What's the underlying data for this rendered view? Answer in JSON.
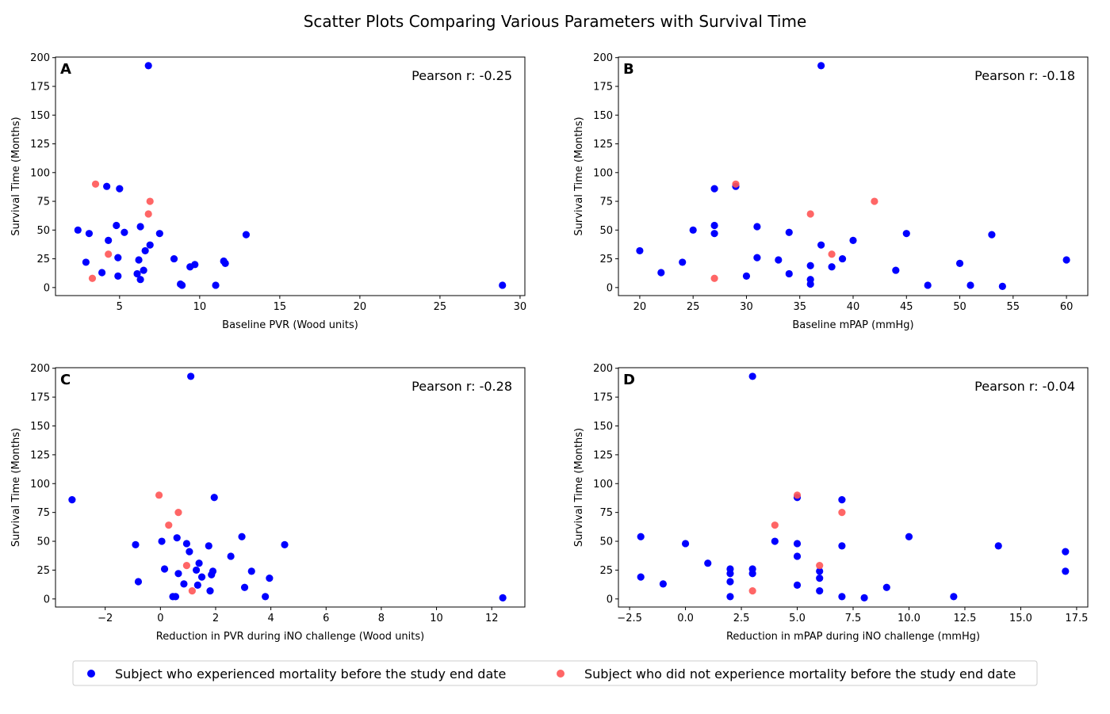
{
  "title": "Scatter Plots Comparing Various Parameters with Survival Time",
  "legend": {
    "placement": "bottom-center",
    "entries": [
      {
        "label": "Subject who experienced mortality before the study end date",
        "color": "#0000ff"
      },
      {
        "label": "Subject who did not experience mortality before the study end date",
        "color": "#ff5555"
      }
    ]
  },
  "chart_data": [
    {
      "type": "scatter",
      "panel": "A",
      "annotation": "Pearson r: -0.25",
      "xlabel": "Baseline PVR (Wood units)",
      "ylabel": "Survival Time (Months)",
      "xlim": [
        1,
        30.3
      ],
      "ylim": [
        -7,
        200.5
      ],
      "xticks": [
        5,
        10,
        15,
        20,
        25,
        30
      ],
      "yticks": [
        0,
        25,
        50,
        75,
        100,
        125,
        150,
        175,
        200
      ],
      "series": [
        {
          "name": "Subject who experienced mortality before the study end date",
          "color": "#0000ff",
          "points": [
            [
              6.8,
              193
            ],
            [
              4.2,
              88
            ],
            [
              5.0,
              86
            ],
            [
              4.8,
              54
            ],
            [
              6.3,
              53
            ],
            [
              2.4,
              50
            ],
            [
              5.3,
              48
            ],
            [
              3.1,
              47
            ],
            [
              7.5,
              47
            ],
            [
              12.9,
              46
            ],
            [
              4.3,
              41
            ],
            [
              6.9,
              37
            ],
            [
              6.6,
              32
            ],
            [
              4.9,
              26
            ],
            [
              8.4,
              25
            ],
            [
              6.2,
              24
            ],
            [
              11.5,
              23
            ],
            [
              11.6,
              21
            ],
            [
              2.9,
              22
            ],
            [
              9.7,
              20
            ],
            [
              9.4,
              18
            ],
            [
              6.5,
              15
            ],
            [
              3.9,
              13
            ],
            [
              6.1,
              12
            ],
            [
              4.9,
              10
            ],
            [
              6.3,
              7
            ],
            [
              8.8,
              3
            ],
            [
              8.9,
              2
            ],
            [
              11.0,
              2
            ],
            [
              28.9,
              2
            ]
          ]
        },
        {
          "name": "Subject who did not experience mortality before the study end date",
          "color": "#ff5555",
          "points": [
            [
              3.5,
              90
            ],
            [
              6.9,
              75
            ],
            [
              6.8,
              64
            ],
            [
              4.3,
              29
            ],
            [
              3.3,
              8
            ]
          ]
        }
      ]
    },
    {
      "type": "scatter",
      "panel": "B",
      "annotation": "Pearson r: -0.18",
      "xlabel": "Baseline mPAP (mmHg)",
      "ylabel": "Survival Time (Months)",
      "xlim": [
        18,
        62
      ],
      "ylim": [
        -7,
        200.5
      ],
      "xticks": [
        20,
        25,
        30,
        35,
        40,
        45,
        50,
        55,
        60
      ],
      "yticks": [
        0,
        25,
        50,
        75,
        100,
        125,
        150,
        175,
        200
      ],
      "series": [
        {
          "name": "Subject who experienced mortality before the study end date",
          "color": "#0000ff",
          "points": [
            [
              37,
              193
            ],
            [
              29,
              88
            ],
            [
              27,
              86
            ],
            [
              27,
              54
            ],
            [
              31,
              53
            ],
            [
              25,
              50
            ],
            [
              34,
              48
            ],
            [
              45,
              47
            ],
            [
              27,
              47
            ],
            [
              53,
              46
            ],
            [
              40,
              41
            ],
            [
              37,
              37
            ],
            [
              20,
              32
            ],
            [
              31,
              26
            ],
            [
              39,
              25
            ],
            [
              33,
              24
            ],
            [
              60,
              24
            ],
            [
              24,
              22
            ],
            [
              50,
              21
            ],
            [
              36,
              19
            ],
            [
              38,
              18
            ],
            [
              44,
              15
            ],
            [
              22,
              13
            ],
            [
              34,
              12
            ],
            [
              30,
              10
            ],
            [
              36,
              7
            ],
            [
              36,
              3
            ],
            [
              47,
              2
            ],
            [
              51,
              2
            ],
            [
              54,
              1
            ]
          ]
        },
        {
          "name": "Subject who did not experience mortality before the study end date",
          "color": "#ff5555",
          "points": [
            [
              29,
              90
            ],
            [
              42,
              75
            ],
            [
              36,
              64
            ],
            [
              38,
              29
            ],
            [
              27,
              8
            ]
          ]
        }
      ]
    },
    {
      "type": "scatter",
      "panel": "C",
      "annotation": "Pearson r: -0.28",
      "xlabel": "Reduction in PVR during iNO challenge (Wood units)",
      "ylabel": "Survival Time (Months)",
      "xlim": [
        -3.8,
        13.2
      ],
      "ylim": [
        -7,
        200.5
      ],
      "xticks": [
        -2,
        0,
        2,
        4,
        6,
        8,
        10,
        12
      ],
      "yticks": [
        0,
        25,
        50,
        75,
        100,
        125,
        150,
        175,
        200
      ],
      "series": [
        {
          "name": "Subject who experienced mortality before the study end date",
          "color": "#0000ff",
          "points": [
            [
              1.1,
              193
            ],
            [
              1.95,
              88
            ],
            [
              -3.2,
              86
            ],
            [
              2.95,
              54
            ],
            [
              0.6,
              53
            ],
            [
              0.05,
              50
            ],
            [
              0.95,
              48
            ],
            [
              -0.9,
              47
            ],
            [
              4.5,
              47
            ],
            [
              1.75,
              46
            ],
            [
              1.05,
              41
            ],
            [
              2.55,
              37
            ],
            [
              1.4,
              31
            ],
            [
              0.15,
              26
            ],
            [
              1.3,
              25
            ],
            [
              3.3,
              24
            ],
            [
              1.9,
              24
            ],
            [
              0.65,
              22
            ],
            [
              1.85,
              21
            ],
            [
              1.5,
              19
            ],
            [
              3.95,
              18
            ],
            [
              -0.8,
              15
            ],
            [
              0.85,
              13
            ],
            [
              1.35,
              12
            ],
            [
              3.05,
              10
            ],
            [
              1.8,
              7
            ],
            [
              0.45,
              2
            ],
            [
              0.55,
              2
            ],
            [
              3.8,
              2
            ],
            [
              12.4,
              1
            ]
          ]
        },
        {
          "name": "Subject who did not experience mortality before the study end date",
          "color": "#ff5555",
          "points": [
            [
              -0.05,
              90
            ],
            [
              0.65,
              75
            ],
            [
              0.3,
              64
            ],
            [
              0.95,
              29
            ],
            [
              1.15,
              7
            ]
          ]
        }
      ]
    },
    {
      "type": "scatter",
      "panel": "D",
      "annotation": "Pearson r: -0.04",
      "xlabel": "Reduction in mPAP during iNO challenge (mmHg)",
      "ylabel": "Survival Time (Months)",
      "xlim": [
        -3,
        18
      ],
      "ylim": [
        -7,
        200.5
      ],
      "xticks": [
        -2.5,
        0.0,
        2.5,
        5.0,
        7.5,
        10.0,
        12.5,
        15.0,
        17.5
      ],
      "yticks": [
        0,
        25,
        50,
        75,
        100,
        125,
        150,
        175,
        200
      ],
      "series": [
        {
          "name": "Subject who experienced mortality before the study end date",
          "color": "#0000ff",
          "points": [
            [
              3,
              193
            ],
            [
              5,
              88
            ],
            [
              7,
              86
            ],
            [
              -2,
              54
            ],
            [
              10,
              54
            ],
            [
              4,
              50
            ],
            [
              5,
              48
            ],
            [
              0,
              48
            ],
            [
              7,
              46
            ],
            [
              14,
              46
            ],
            [
              17,
              41
            ],
            [
              5,
              37
            ],
            [
              1,
              31
            ],
            [
              2,
              26
            ],
            [
              3,
              26
            ],
            [
              2,
              22
            ],
            [
              3,
              22
            ],
            [
              6,
              24
            ],
            [
              17,
              24
            ],
            [
              -2,
              19
            ],
            [
              6,
              18
            ],
            [
              2,
              15
            ],
            [
              -1,
              13
            ],
            [
              5,
              12
            ],
            [
              9,
              10
            ],
            [
              6,
              7
            ],
            [
              2,
              2
            ],
            [
              7,
              2
            ],
            [
              8,
              1
            ],
            [
              12,
              2
            ]
          ]
        },
        {
          "name": "Subject who did not experience mortality before the study end date",
          "color": "#ff5555",
          "points": [
            [
              5,
              90
            ],
            [
              7,
              75
            ],
            [
              4,
              64
            ],
            [
              6,
              29
            ],
            [
              3,
              7
            ]
          ]
        }
      ]
    }
  ]
}
